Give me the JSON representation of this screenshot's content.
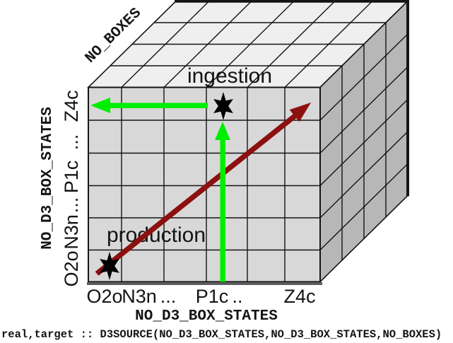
{
  "colors": {
    "top_face": "#efefef",
    "front_face": "#d8d8d8",
    "side_face": "#b7b7b7",
    "edge": "#141414",
    "bottom_edge": "#5c5c5c",
    "green_arrow": "#00ee00",
    "red_arrow": "#8c1010",
    "star": "#000000"
  },
  "cube": {
    "depth_axis_label": "NO_BOXES",
    "x_axis_title": "NO_D3_BOX_STATES",
    "y_axis_title": "NO_D3_BOX_STATES",
    "x_ticks": [
      "O2o",
      "N3n",
      "...",
      "P1c",
      "..",
      "Z4c"
    ],
    "y_ticks": [
      "Z4c",
      "...",
      "P1c",
      "...",
      "N3n",
      "O2o"
    ]
  },
  "annotations": {
    "ingestion": "ingestion",
    "production": "production"
  },
  "code_line": "real,target :: D3SOURCE(NO_D3_BOX_STATES,NO_D3_BOX_STATES,NO_BOXES)"
}
